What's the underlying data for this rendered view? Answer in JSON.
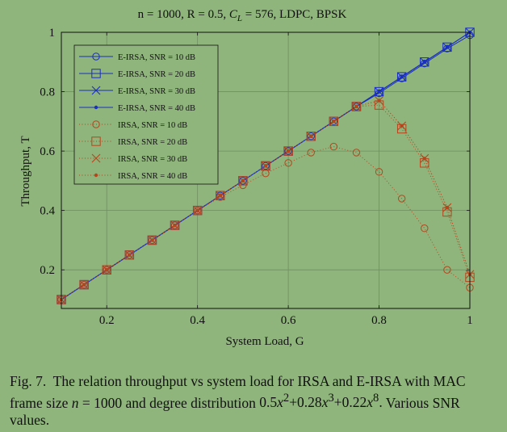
{
  "chart_data": {
    "type": "line",
    "title": "n = 1000, R = 0.5, C_L = 576, LDPC, BPSK",
    "title_parts": {
      "prefix": "n = 1000, R = 0.5, ",
      "var": "C",
      "sub": "L",
      "suffix": " = 576, LDPC, BPSK"
    },
    "xlabel": "System Load, G",
    "ylabel": "Throughput, T",
    "xlim": [
      0.1,
      1.0
    ],
    "ylim": [
      0.07,
      1.0
    ],
    "xticks": [
      0.2,
      0.4,
      0.6,
      0.8,
      1
    ],
    "xtick_labels": [
      "0.2",
      "0.4",
      "0.6",
      "0.8",
      "1"
    ],
    "yticks": [
      0.2,
      0.4,
      0.6,
      0.8,
      1
    ],
    "ytick_labels": [
      "0.2",
      "0.4",
      "0.6",
      "0.8",
      "1"
    ],
    "grid": true,
    "legend_position": "top-left",
    "x": [
      0.1,
      0.15,
      0.2,
      0.25,
      0.3,
      0.35,
      0.4,
      0.45,
      0.5,
      0.55,
      0.6,
      0.65,
      0.7,
      0.75,
      0.8,
      0.85,
      0.9,
      0.95,
      1.0
    ],
    "series": [
      {
        "name": "E-IRSA, SNR = 10 dB",
        "color": "#1a2fbf",
        "linestyle": "solid",
        "marker": "circle",
        "values": [
          0.1,
          0.15,
          0.2,
          0.25,
          0.3,
          0.35,
          0.4,
          0.45,
          0.5,
          0.55,
          0.6,
          0.65,
          0.7,
          0.75,
          0.795,
          0.845,
          0.895,
          0.945,
          0.99
        ]
      },
      {
        "name": "E-IRSA, SNR = 20 dB",
        "color": "#1a2fbf",
        "linestyle": "solid",
        "marker": "square",
        "values": [
          0.1,
          0.15,
          0.2,
          0.25,
          0.3,
          0.35,
          0.4,
          0.45,
          0.5,
          0.55,
          0.6,
          0.65,
          0.7,
          0.75,
          0.8,
          0.85,
          0.9,
          0.95,
          1.0
        ]
      },
      {
        "name": "E-IRSA, SNR = 30 dB",
        "color": "#1a2fbf",
        "linestyle": "solid",
        "marker": "cross",
        "values": [
          0.1,
          0.15,
          0.2,
          0.25,
          0.3,
          0.35,
          0.4,
          0.45,
          0.5,
          0.55,
          0.6,
          0.65,
          0.7,
          0.75,
          0.8,
          0.85,
          0.9,
          0.95,
          1.0
        ]
      },
      {
        "name": "E-IRSA, SNR = 40 dB",
        "color": "#1a2fbf",
        "linestyle": "solid",
        "marker": "dot",
        "values": [
          0.1,
          0.15,
          0.2,
          0.25,
          0.3,
          0.35,
          0.4,
          0.45,
          0.5,
          0.55,
          0.6,
          0.65,
          0.7,
          0.75,
          0.8,
          0.85,
          0.9,
          0.95,
          1.0
        ]
      },
      {
        "name": "IRSA, SNR = 10 dB",
        "color": "#b5461c",
        "linestyle": "dotted",
        "marker": "circle",
        "values": [
          0.1,
          0.15,
          0.2,
          0.25,
          0.3,
          0.35,
          0.4,
          0.445,
          0.485,
          0.525,
          0.56,
          0.595,
          0.615,
          0.595,
          0.53,
          0.44,
          0.34,
          0.2,
          0.14
        ]
      },
      {
        "name": "IRSA, SNR = 20 dB",
        "color": "#b5461c",
        "linestyle": "dotted",
        "marker": "square",
        "values": [
          0.1,
          0.15,
          0.2,
          0.25,
          0.3,
          0.35,
          0.4,
          0.45,
          0.5,
          0.55,
          0.6,
          0.65,
          0.7,
          0.75,
          0.755,
          0.675,
          0.56,
          0.395,
          0.175
        ]
      },
      {
        "name": "IRSA, SNR = 30 dB",
        "color": "#b5461c",
        "linestyle": "dotted",
        "marker": "cross",
        "values": [
          0.1,
          0.15,
          0.2,
          0.25,
          0.3,
          0.35,
          0.4,
          0.45,
          0.5,
          0.55,
          0.6,
          0.65,
          0.7,
          0.75,
          0.77,
          0.685,
          0.575,
          0.41,
          0.185
        ]
      },
      {
        "name": "IRSA, SNR = 40 dB",
        "color": "#b5461c",
        "linestyle": "dotted",
        "marker": "dot",
        "values": [
          0.1,
          0.15,
          0.2,
          0.25,
          0.3,
          0.35,
          0.4,
          0.45,
          0.5,
          0.55,
          0.6,
          0.65,
          0.7,
          0.75,
          0.77,
          0.685,
          0.575,
          0.41,
          0.185
        ]
      }
    ]
  },
  "caption": {
    "label": "Fig. 7.",
    "text_before_n": "The relation throughput vs system load for IRSA and E-IRSA with MAC frame size ",
    "n_var": "n",
    "n_value": " = 1000 and degree distribution ",
    "polynomial_html": "0.5<i>x</i><sup>2</sup>+0.28<i>x</i><sup>3</sup>+0.22<i>x</i><sup>8</sup>.",
    "text_after": "Various SNR values."
  }
}
